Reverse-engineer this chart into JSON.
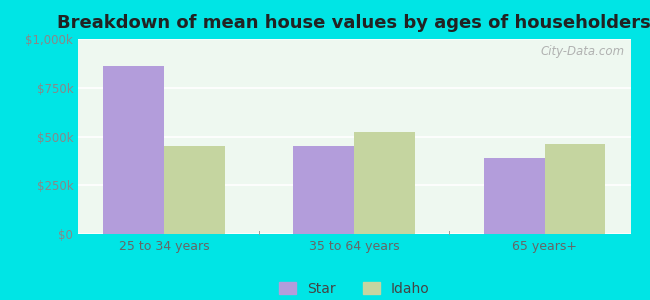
{
  "title": "Breakdown of mean house values by ages of householders",
  "categories": [
    "25 to 34 years",
    "35 to 64 years",
    "65 years+"
  ],
  "star_values": [
    860000,
    450000,
    390000
  ],
  "idaho_values": [
    450000,
    525000,
    460000
  ],
  "star_color": "#b39ddb",
  "idaho_color": "#c5d5a0",
  "ylim": [
    0,
    1000000
  ],
  "yticks": [
    0,
    250000,
    500000,
    750000,
    1000000
  ],
  "ytick_labels": [
    "$0",
    "$250k",
    "$500k",
    "$750k",
    "$1,000k"
  ],
  "legend_labels": [
    "Star",
    "Idaho"
  ],
  "figure_bg_color": "#00e5e5",
  "plot_bg_color_top": "#e8f5f0",
  "plot_bg_color_bottom": "#f5fff8",
  "bar_width": 0.32,
  "title_fontsize": 13,
  "watermark": "City-Data.com",
  "tick_label_color": "#888888",
  "xtick_label_color": "#666666"
}
